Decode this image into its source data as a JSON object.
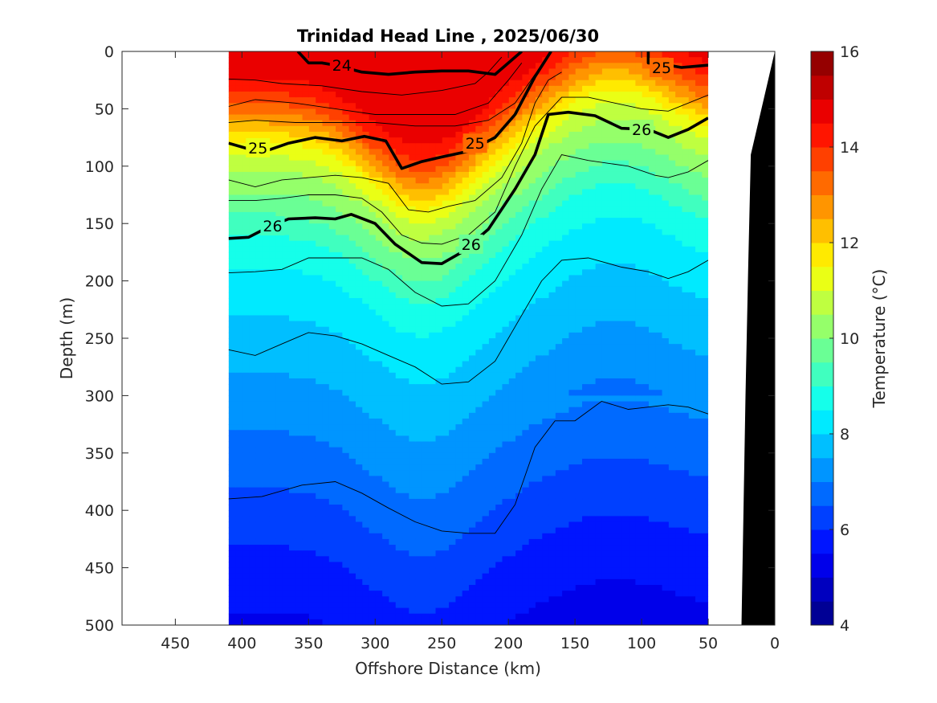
{
  "chart_data": {
    "type": "heatmap",
    "title": "Trinidad Head Line , 2025/06/30",
    "xlabel": "Offshore Distance (km)",
    "ylabel": "Depth (m)",
    "colorbar_label": "Temperature (°C)",
    "x_reversed": true,
    "y_reversed": true,
    "xlim": [
      0,
      490
    ],
    "ylim": [
      0,
      500
    ],
    "xticks": [
      450,
      400,
      350,
      300,
      250,
      200,
      150,
      100,
      50,
      0
    ],
    "yticks": [
      0,
      50,
      100,
      150,
      200,
      250,
      300,
      350,
      400,
      450,
      500
    ],
    "colorbar_range": [
      4,
      16
    ],
    "colorbar_ticks": [
      4,
      6,
      8,
      10,
      12,
      14,
      16
    ],
    "colorbar_step": 0.5,
    "data_extent_km": [
      50,
      410
    ],
    "temperature_profile": [
      {
        "depth": 0,
        "temp": 14.8
      },
      {
        "depth": 20,
        "temp": 14.6
      },
      {
        "depth": 40,
        "temp": 13.8
      },
      {
        "depth": 60,
        "temp": 12.6
      },
      {
        "depth": 80,
        "temp": 11.4
      },
      {
        "depth": 100,
        "temp": 10.6
      },
      {
        "depth": 130,
        "temp": 9.8
      },
      {
        "depth": 160,
        "temp": 9.0
      },
      {
        "depth": 200,
        "temp": 8.3
      },
      {
        "depth": 250,
        "temp": 7.8
      },
      {
        "depth": 300,
        "temp": 7.3
      },
      {
        "depth": 350,
        "temp": 6.8
      },
      {
        "depth": 400,
        "temp": 6.3
      },
      {
        "depth": 450,
        "temp": 5.8
      },
      {
        "depth": 500,
        "temp": 5.4
      }
    ],
    "isopycnals": [
      {
        "label": "24",
        "bold": true,
        "points": [
          [
            358,
            0
          ],
          [
            350,
            10
          ],
          [
            340,
            10
          ],
          [
            330,
            12
          ],
          [
            310,
            18
          ],
          [
            290,
            20
          ],
          [
            270,
            18
          ],
          [
            250,
            17
          ],
          [
            230,
            17
          ],
          [
            210,
            20
          ],
          [
            195,
            5
          ],
          [
            190,
            0
          ]
        ]
      },
      {
        "label": "25",
        "bold": true,
        "points": [
          [
            410,
            80
          ],
          [
            395,
            85
          ],
          [
            380,
            86
          ],
          [
            365,
            80
          ],
          [
            345,
            75
          ],
          [
            325,
            78
          ],
          [
            308,
            74
          ],
          [
            292,
            78
          ],
          [
            280,
            102
          ],
          [
            265,
            96
          ],
          [
            250,
            92
          ],
          [
            230,
            87
          ],
          [
            210,
            75
          ],
          [
            195,
            55
          ],
          [
            180,
            22
          ],
          [
            168,
            0
          ]
        ]
      },
      {
        "label": "26",
        "bold": true,
        "points": [
          [
            410,
            163
          ],
          [
            395,
            162
          ],
          [
            380,
            153
          ],
          [
            365,
            146
          ],
          [
            345,
            145
          ],
          [
            330,
            146
          ],
          [
            318,
            142
          ],
          [
            300,
            150
          ],
          [
            285,
            168
          ],
          [
            265,
            184
          ],
          [
            250,
            185
          ],
          [
            235,
            175
          ],
          [
            215,
            155
          ],
          [
            195,
            120
          ],
          [
            180,
            90
          ],
          [
            170,
            55
          ],
          [
            155,
            53
          ],
          [
            135,
            56
          ],
          [
            115,
            67
          ],
          [
            95,
            68
          ],
          [
            80,
            75
          ],
          [
            65,
            68
          ],
          [
            50,
            58
          ]
        ]
      },
      {
        "label": "25",
        "bold": true,
        "points": [
          [
            95,
            0
          ],
          [
            95,
            10
          ],
          [
            80,
            12
          ],
          [
            70,
            14
          ],
          [
            50,
            12
          ]
        ]
      }
    ],
    "thin_contours": [
      {
        "points": [
          [
            410,
            24
          ],
          [
            390,
            25
          ],
          [
            370,
            28
          ],
          [
            340,
            30
          ],
          [
            310,
            35
          ],
          [
            280,
            38
          ],
          [
            250,
            34
          ],
          [
            225,
            28
          ],
          [
            215,
            18
          ],
          [
            205,
            5
          ]
        ]
      },
      {
        "points": [
          [
            410,
            48
          ],
          [
            390,
            42
          ],
          [
            360,
            45
          ],
          [
            330,
            50
          ],
          [
            300,
            55
          ],
          [
            270,
            55
          ],
          [
            240,
            55
          ],
          [
            215,
            45
          ],
          [
            200,
            25
          ],
          [
            190,
            10
          ]
        ]
      },
      {
        "points": [
          [
            410,
            62
          ],
          [
            390,
            60
          ],
          [
            360,
            62
          ],
          [
            330,
            62
          ],
          [
            300,
            62
          ],
          [
            270,
            65
          ],
          [
            240,
            65
          ],
          [
            215,
            60
          ],
          [
            195,
            45
          ],
          [
            180,
            20
          ],
          [
            170,
            5
          ]
        ]
      },
      {
        "points": [
          [
            410,
            112
          ],
          [
            390,
            118
          ],
          [
            370,
            112
          ],
          [
            350,
            110
          ],
          [
            330,
            108
          ],
          [
            310,
            110
          ],
          [
            290,
            115
          ],
          [
            275,
            138
          ],
          [
            260,
            140
          ],
          [
            245,
            135
          ],
          [
            225,
            130
          ],
          [
            205,
            110
          ],
          [
            190,
            80
          ],
          [
            180,
            45
          ],
          [
            170,
            25
          ],
          [
            160,
            18
          ]
        ]
      },
      {
        "points": [
          [
            410,
            130
          ],
          [
            390,
            130
          ],
          [
            370,
            128
          ],
          [
            350,
            125
          ],
          [
            330,
            125
          ],
          [
            310,
            128
          ],
          [
            295,
            140
          ],
          [
            280,
            160
          ],
          [
            265,
            167
          ],
          [
            250,
            168
          ],
          [
            230,
            160
          ],
          [
            210,
            140
          ],
          [
            195,
            100
          ],
          [
            180,
            65
          ],
          [
            160,
            40
          ],
          [
            140,
            40
          ],
          [
            120,
            45
          ],
          [
            100,
            50
          ],
          [
            80,
            52
          ],
          [
            65,
            45
          ],
          [
            50,
            38
          ]
        ]
      },
      {
        "points": [
          [
            410,
            193
          ],
          [
            390,
            192
          ],
          [
            370,
            190
          ],
          [
            350,
            180
          ],
          [
            330,
            180
          ],
          [
            310,
            180
          ],
          [
            290,
            190
          ],
          [
            270,
            210
          ],
          [
            250,
            222
          ],
          [
            230,
            220
          ],
          [
            210,
            200
          ],
          [
            190,
            160
          ],
          [
            175,
            120
          ],
          [
            160,
            90
          ],
          [
            140,
            95
          ],
          [
            110,
            100
          ],
          [
            90,
            108
          ],
          [
            80,
            110
          ],
          [
            65,
            105
          ],
          [
            50,
            95
          ]
        ]
      },
      {
        "points": [
          [
            410,
            260
          ],
          [
            390,
            265
          ],
          [
            370,
            255
          ],
          [
            350,
            245
          ],
          [
            330,
            248
          ],
          [
            310,
            255
          ],
          [
            290,
            265
          ],
          [
            270,
            275
          ],
          [
            250,
            290
          ],
          [
            230,
            288
          ],
          [
            210,
            270
          ],
          [
            195,
            240
          ],
          [
            175,
            200
          ],
          [
            160,
            182
          ],
          [
            140,
            180
          ],
          [
            115,
            188
          ],
          [
            95,
            192
          ],
          [
            80,
            198
          ],
          [
            65,
            192
          ],
          [
            50,
            182
          ]
        ]
      },
      {
        "points": [
          [
            410,
            390
          ],
          [
            385,
            388
          ],
          [
            355,
            378
          ],
          [
            330,
            375
          ],
          [
            310,
            385
          ],
          [
            290,
            398
          ],
          [
            270,
            410
          ],
          [
            250,
            418
          ],
          [
            230,
            420
          ],
          [
            210,
            420
          ],
          [
            195,
            395
          ],
          [
            180,
            345
          ],
          [
            165,
            322
          ],
          [
            150,
            322
          ],
          [
            130,
            305
          ],
          [
            110,
            312
          ],
          [
            95,
            310
          ],
          [
            80,
            308
          ],
          [
            65,
            310
          ],
          [
            50,
            316
          ]
        ]
      }
    ],
    "isopycnal_labels": [
      {
        "text": "24",
        "x": 325,
        "y": 12
      },
      {
        "text": "25",
        "x": 388,
        "y": 84
      },
      {
        "text": "25",
        "x": 225,
        "y": 80
      },
      {
        "text": "26",
        "x": 377,
        "y": 152
      },
      {
        "text": "26",
        "x": 228,
        "y": 168
      },
      {
        "text": "26",
        "x": 100,
        "y": 68
      },
      {
        "text": "25",
        "x": 85,
        "y": 14
      }
    ],
    "bathymetry": [
      [
        25,
        500
      ],
      [
        22,
        300
      ],
      [
        20,
        190
      ],
      [
        18,
        90
      ],
      [
        10,
        50
      ],
      [
        0,
        0
      ],
      [
        0,
        500
      ]
    ]
  }
}
